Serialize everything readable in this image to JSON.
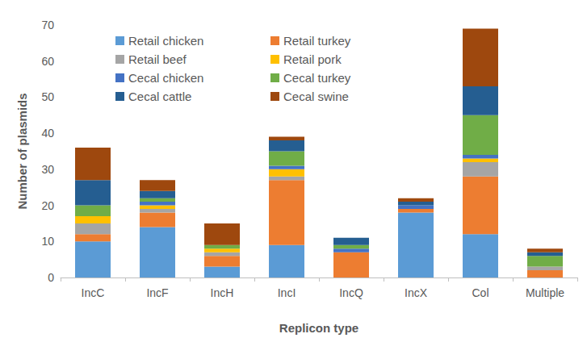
{
  "chart_data": {
    "type": "bar",
    "stacked": true,
    "legend": "top-left",
    "grid": false,
    "x_label": "Replicon type",
    "y_label": "Number of plasmids",
    "categories": [
      "IncC",
      "IncF",
      "IncH",
      "IncI",
      "IncQ",
      "IncX",
      "Col",
      "Multiple"
    ],
    "ylim": [
      0,
      70
    ],
    "yticks": [
      0,
      10,
      20,
      30,
      40,
      50,
      60,
      70
    ],
    "series": [
      {
        "name": "Retail chicken",
        "color": "#5B9BD5",
        "values": [
          10,
          14,
          3,
          9,
          0,
          18,
          12,
          0
        ]
      },
      {
        "name": "Retail turkey",
        "color": "#ED7D31",
        "values": [
          2,
          4,
          3,
          18,
          7,
          1,
          16,
          2
        ]
      },
      {
        "name": "Retail beef",
        "color": "#A5A5A5",
        "values": [
          3,
          1,
          1,
          1,
          0,
          0,
          4,
          1
        ]
      },
      {
        "name": "Retail pork",
        "color": "#FFC000",
        "values": [
          2,
          1,
          1,
          2,
          0,
          0,
          1,
          0
        ]
      },
      {
        "name": "Cecal chicken",
        "color": "#4472C4",
        "values": [
          0,
          1,
          0,
          1,
          1,
          1,
          1,
          0
        ]
      },
      {
        "name": "Cecal turkey",
        "color": "#70AD47",
        "values": [
          3,
          1,
          1,
          4,
          1,
          0,
          11,
          3
        ]
      },
      {
        "name": "Cecal cattle",
        "color": "#255E91",
        "values": [
          7,
          2,
          0,
          3,
          2,
          1,
          8,
          1
        ]
      },
      {
        "name": "Cecal swine",
        "color": "#9E480E",
        "values": [
          9,
          3,
          6,
          1,
          0,
          1,
          16,
          1
        ]
      }
    ]
  }
}
